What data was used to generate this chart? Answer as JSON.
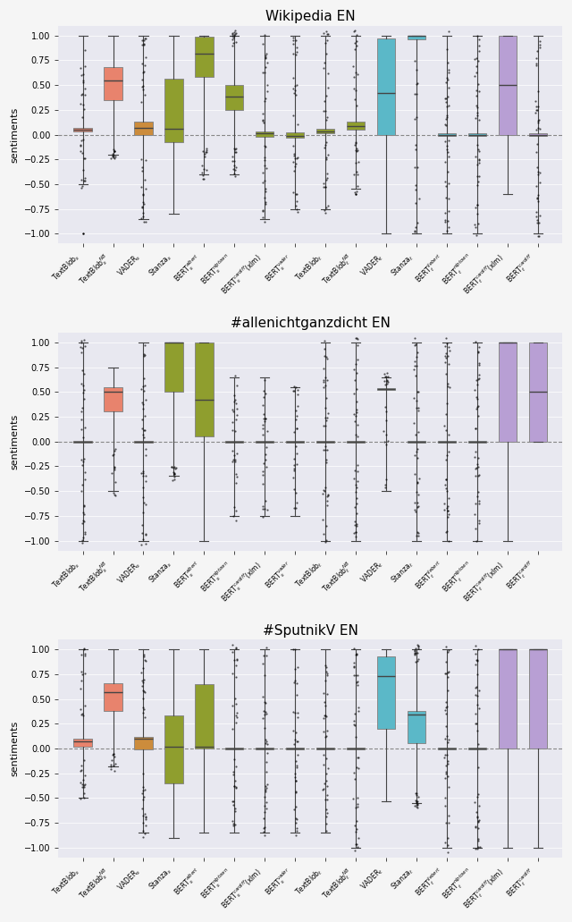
{
  "subplots": [
    {
      "title": "Wikipedia EN",
      "tools": [
        "TextBlob$_s$",
        "TextBlob$_s^{NB}$",
        "VADER$_s$",
        "Stanza$_s$",
        "BERT$_s^{albert}$",
        "BERT$_s^{nlptown}$",
        "BERT$_s^{cardiff}$(xlm)",
        "BERT$_s^{vader}$",
        "TextBlob$_t$",
        "TextBlob$_t^{NB}$",
        "VADER$_t$",
        "Stanza$_t$",
        "BERT$_t^{liebert}$",
        "BERT$_t^{nlptown}$",
        "BERT$_t^{cardiff}$(xlm)",
        "BERT$_t^{cardiff}$"
      ],
      "colors": [
        "#e8836d",
        "#e8836d",
        "#cc8c3c",
        "#8f9e2e",
        "#8f9e2e",
        "#8f9e2e",
        "#8f9e2e",
        "#8f9e2e",
        "#8f9e2e",
        "#8f9e2e",
        "#5bb8c8",
        "#5bb8c8",
        "#5bb8c8",
        "#5bb8c8",
        "#b89fd4",
        "#b89fd4"
      ],
      "boxes": [
        {
          "q1": 0.03,
          "median": 0.05,
          "q3": 0.07,
          "whislo": -0.5,
          "whishi": 1.0,
          "fliers_low": [
            -1.0
          ],
          "fliers_high": []
        },
        {
          "q1": 0.35,
          "median": 0.55,
          "q3": 0.68,
          "whislo": -0.2,
          "whishi": 1.0,
          "fliers_low": [],
          "fliers_high": []
        },
        {
          "q1": 0.0,
          "median": 0.07,
          "q3": 0.13,
          "whislo": -0.85,
          "whishi": 1.0,
          "fliers_low": [],
          "fliers_high": []
        },
        {
          "q1": -0.08,
          "median": 0.06,
          "q3": 0.56,
          "whislo": -0.8,
          "whishi": 1.0,
          "fliers_low": [],
          "fliers_high": []
        },
        {
          "q1": 0.58,
          "median": 0.82,
          "q3": 0.99,
          "whislo": -0.4,
          "whishi": 1.0,
          "fliers_low": [],
          "fliers_high": []
        },
        {
          "q1": 0.25,
          "median": 0.38,
          "q3": 0.5,
          "whislo": -0.4,
          "whishi": 1.0,
          "fliers_low": [],
          "fliers_high": []
        },
        {
          "q1": -0.02,
          "median": 0.01,
          "q3": 0.03,
          "whislo": -0.85,
          "whishi": 1.0,
          "fliers_low": [],
          "fliers_high": []
        },
        {
          "q1": -0.03,
          "median": -0.01,
          "q3": 0.02,
          "whislo": -0.75,
          "whishi": 1.0,
          "fliers_low": [],
          "fliers_high": []
        },
        {
          "q1": 0.01,
          "median": 0.03,
          "q3": 0.06,
          "whislo": -0.75,
          "whishi": 1.0,
          "fliers_low": [],
          "fliers_high": []
        },
        {
          "q1": 0.05,
          "median": 0.09,
          "q3": 0.13,
          "whislo": -0.55,
          "whishi": 1.0,
          "fliers_low": [
            -0.6
          ],
          "fliers_high": []
        },
        {
          "q1": 0.0,
          "median": 0.42,
          "q3": 0.97,
          "whislo": -1.0,
          "whishi": 1.0,
          "fliers_low": [],
          "fliers_high": []
        },
        {
          "q1": 0.96,
          "median": 1.0,
          "q3": 1.0,
          "whislo": -1.0,
          "whishi": 1.0,
          "fliers_low": [],
          "fliers_high": []
        },
        {
          "q1": -0.01,
          "median": 0.0,
          "q3": 0.01,
          "whislo": -1.0,
          "whishi": 1.0,
          "fliers_low": [],
          "fliers_high": []
        },
        {
          "q1": -0.01,
          "median": 0.0,
          "q3": 0.01,
          "whislo": -1.0,
          "whishi": 1.0,
          "fliers_low": [],
          "fliers_high": []
        },
        {
          "q1": 0.0,
          "median": 0.5,
          "q3": 1.0,
          "whislo": -0.6,
          "whishi": 1.0,
          "fliers_low": [],
          "fliers_high": []
        },
        {
          "q1": -0.01,
          "median": 0.0,
          "q3": 0.01,
          "whislo": -1.0,
          "whishi": 1.0,
          "fliers_low": [],
          "fliers_high": []
        }
      ]
    },
    {
      "title": "#allenichtganzdicht EN",
      "tools": [
        "TextBlob$_s$",
        "TextBlob$_s^{NB}$",
        "VADER$_s$",
        "Stanza$_s$",
        "BERT$_s^{albert}$",
        "BERT$_s^{nlptown}$",
        "BERT$_s^{cardiff}$(xlm)",
        "BERT$_s^{vader}$",
        "TextBlob$_t$",
        "TextBlob$_t^{NB}$",
        "VADER$_t$",
        "Stanza$_t$",
        "BERT$_t^{liebert}$",
        "BERT$_t^{nlptown}$",
        "BERT$_t^{cardiff}$(xlm)",
        "BERT$_t^{cardiff}$"
      ],
      "colors": [
        "#e8836d",
        "#e8836d",
        "#cc8c3c",
        "#8f9e2e",
        "#8f9e2e",
        "#8f9e2e",
        "#8f9e2e",
        "#8f9e2e",
        "#8f9e2e",
        "#8f9e2e",
        "#5bb8c8",
        "#5bb8c8",
        "#5bb8c8",
        "#5bb8c8",
        "#b89fd4",
        "#b89fd4"
      ],
      "boxes": [
        {
          "q1": -0.01,
          "median": 0.0,
          "q3": 0.01,
          "whislo": -1.0,
          "whishi": 1.0,
          "fliers_low": [],
          "fliers_high": []
        },
        {
          "q1": 0.3,
          "median": 0.5,
          "q3": 0.55,
          "whislo": -0.5,
          "whishi": 0.75,
          "fliers_low": [],
          "fliers_high": []
        },
        {
          "q1": -0.01,
          "median": 0.0,
          "q3": 0.01,
          "whislo": -1.0,
          "whishi": 1.0,
          "fliers_low": [],
          "fliers_high": []
        },
        {
          "q1": 0.5,
          "median": 1.0,
          "q3": 1.0,
          "whislo": -0.35,
          "whishi": 1.0,
          "fliers_low": [],
          "fliers_high": []
        },
        {
          "q1": 0.05,
          "median": 0.42,
          "q3": 1.0,
          "whislo": -1.0,
          "whishi": 1.0,
          "fliers_low": [],
          "fliers_high": []
        },
        {
          "q1": -0.01,
          "median": 0.0,
          "q3": 0.01,
          "whislo": -0.75,
          "whishi": 0.65,
          "fliers_low": [],
          "fliers_high": []
        },
        {
          "q1": -0.01,
          "median": 0.0,
          "q3": 0.01,
          "whislo": -0.75,
          "whishi": 0.65,
          "fliers_low": [],
          "fliers_high": []
        },
        {
          "q1": -0.01,
          "median": 0.0,
          "q3": 0.01,
          "whislo": -0.75,
          "whishi": 0.55,
          "fliers_low": [],
          "fliers_high": []
        },
        {
          "q1": -0.01,
          "median": 0.0,
          "q3": 0.01,
          "whislo": -1.0,
          "whishi": 1.0,
          "fliers_low": [],
          "fliers_high": []
        },
        {
          "q1": -0.01,
          "median": 0.0,
          "q3": 0.01,
          "whislo": -1.0,
          "whishi": 1.0,
          "fliers_low": [],
          "fliers_high": []
        },
        {
          "q1": 0.52,
          "median": 0.53,
          "q3": 0.54,
          "whislo": -0.5,
          "whishi": 0.65,
          "fliers_low": [],
          "fliers_high": []
        },
        {
          "q1": -0.01,
          "median": 0.0,
          "q3": 0.01,
          "whislo": -1.0,
          "whishi": 1.0,
          "fliers_low": [],
          "fliers_high": []
        },
        {
          "q1": -0.01,
          "median": 0.0,
          "q3": 0.01,
          "whislo": -1.0,
          "whishi": 1.0,
          "fliers_low": [],
          "fliers_high": []
        },
        {
          "q1": -0.01,
          "median": 0.0,
          "q3": 0.01,
          "whislo": -1.0,
          "whishi": 1.0,
          "fliers_low": [],
          "fliers_high": []
        },
        {
          "q1": 0.0,
          "median": 1.0,
          "q3": 1.0,
          "whislo": -1.0,
          "whishi": 1.0,
          "fliers_low": [],
          "fliers_high": []
        },
        {
          "q1": 0.0,
          "median": 0.5,
          "q3": 1.0,
          "whislo": 0.0,
          "whishi": 1.0,
          "fliers_low": [],
          "fliers_high": []
        }
      ]
    },
    {
      "title": "#SputnikV EN",
      "tools": [
        "TextBlob$_s$",
        "TextBlob$_s^{NB}$",
        "VADER$_s$",
        "Stanza$_s$",
        "BERT$_s^{albert}$",
        "BERT$_s^{nlptown}$",
        "BERT$_s^{cardiff}$(xlm)",
        "BERT$_s^{vader}$",
        "TextBlob$_t$",
        "TextBlob$_t^{NB}$",
        "VADER$_t$",
        "Stanza$_t$",
        "BERT$_t^{liebert}$",
        "BERT$_t^{nlptown}$",
        "BERT$_t^{cardiff}$(xlm)",
        "BERT$_t^{cardiff}$"
      ],
      "colors": [
        "#e8836d",
        "#e8836d",
        "#cc8c3c",
        "#8f9e2e",
        "#8f9e2e",
        "#8f9e2e",
        "#8f9e2e",
        "#8f9e2e",
        "#8f9e2e",
        "#8f9e2e",
        "#5bb8c8",
        "#5bb8c8",
        "#5bb8c8",
        "#5bb8c8",
        "#b89fd4",
        "#b89fd4"
      ],
      "boxes": [
        {
          "q1": 0.02,
          "median": 0.07,
          "q3": 0.1,
          "whislo": -0.5,
          "whishi": 1.0,
          "fliers_low": [],
          "fliers_high": []
        },
        {
          "q1": 0.38,
          "median": 0.57,
          "q3": 0.66,
          "whislo": -0.18,
          "whishi": 1.0,
          "fliers_low": [],
          "fliers_high": []
        },
        {
          "q1": -0.01,
          "median": 0.1,
          "q3": 0.12,
          "whislo": -0.85,
          "whishi": 1.0,
          "fliers_low": [],
          "fliers_high": []
        },
        {
          "q1": -0.35,
          "median": 0.02,
          "q3": 0.33,
          "whislo": -0.9,
          "whishi": 1.0,
          "fliers_low": [],
          "fliers_high": []
        },
        {
          "q1": 0.0,
          "median": 0.02,
          "q3": 0.65,
          "whislo": -0.85,
          "whishi": 1.0,
          "fliers_low": [],
          "fliers_high": []
        },
        {
          "q1": -0.01,
          "median": 0.0,
          "q3": 0.01,
          "whislo": -0.85,
          "whishi": 1.0,
          "fliers_low": [],
          "fliers_high": []
        },
        {
          "q1": -0.01,
          "median": 0.0,
          "q3": 0.01,
          "whislo": -0.85,
          "whishi": 1.0,
          "fliers_low": [],
          "fliers_high": []
        },
        {
          "q1": -0.01,
          "median": 0.0,
          "q3": 0.01,
          "whislo": -0.85,
          "whishi": 1.0,
          "fliers_low": [],
          "fliers_high": []
        },
        {
          "q1": -0.01,
          "median": 0.0,
          "q3": 0.01,
          "whislo": -0.85,
          "whishi": 1.0,
          "fliers_low": [],
          "fliers_high": []
        },
        {
          "q1": -0.01,
          "median": 0.0,
          "q3": 0.01,
          "whislo": -1.0,
          "whishi": 1.0,
          "fliers_low": [],
          "fliers_high": []
        },
        {
          "q1": 0.2,
          "median": 0.73,
          "q3": 0.93,
          "whislo": -0.53,
          "whishi": 1.0,
          "fliers_low": [],
          "fliers_high": []
        },
        {
          "q1": 0.05,
          "median": 0.34,
          "q3": 0.38,
          "whislo": -0.55,
          "whishi": 1.0,
          "fliers_low": [],
          "fliers_high": []
        },
        {
          "q1": -0.01,
          "median": 0.0,
          "q3": 0.01,
          "whislo": -1.0,
          "whishi": 1.0,
          "fliers_low": [],
          "fliers_high": []
        },
        {
          "q1": -0.01,
          "median": 0.0,
          "q3": 0.01,
          "whislo": -1.0,
          "whishi": 1.0,
          "fliers_low": [],
          "fliers_high": []
        },
        {
          "q1": 0.0,
          "median": 1.0,
          "q3": 1.0,
          "whislo": -1.0,
          "whishi": 1.0,
          "fliers_low": [],
          "fliers_high": []
        },
        {
          "q1": 0.0,
          "median": 1.0,
          "q3": 1.0,
          "whislo": -1.0,
          "whishi": 1.0,
          "fliers_low": [],
          "fliers_high": []
        }
      ]
    }
  ],
  "ylabel": "sentiments",
  "ylim": [
    -1.1,
    1.1
  ],
  "yticks": [
    -1.0,
    -0.75,
    -0.5,
    -0.25,
    0.0,
    0.25,
    0.5,
    0.75,
    1.0
  ],
  "bg_color": "#e8e8f0",
  "fig_bg": "#f5f5f5"
}
